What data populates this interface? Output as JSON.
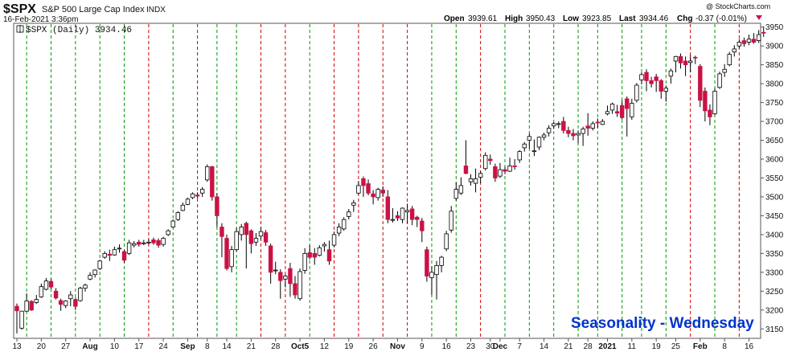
{
  "header": {
    "symbol": "$SPX",
    "name": "S&P 500 Large Cap Index",
    "exchange": "INDX",
    "datetime": "16-Feb-2021 3:36pm",
    "watermark": "@ StockCharts.com",
    "open_label": "Open",
    "open": "3939.61",
    "high_label": "High",
    "high": "3950.43",
    "low_label": "Low",
    "low": "3923.85",
    "last_label": "Last",
    "last": "3934.46",
    "chg_label": "Chg",
    "chg": "-0.37 (-0.01%)"
  },
  "legend": {
    "label": "$SPX (Daily) 3934.46"
  },
  "annotation": "Seasonality - Wednesday",
  "colors": {
    "up": "#ffffff",
    "down": "#cc1144",
    "outline": "#000000",
    "green_line": "#009900",
    "red_line": "#cc0000",
    "annotation": "#0033cc"
  },
  "chart_data": {
    "type": "candlestick",
    "ylim": [
      3125,
      3960
    ],
    "yticks": [
      3150,
      3200,
      3250,
      3300,
      3350,
      3400,
      3450,
      3500,
      3550,
      3600,
      3650,
      3700,
      3750,
      3800,
      3850,
      3900,
      3950
    ],
    "xticks": [
      {
        "label": "13",
        "i": 0,
        "bold": false
      },
      {
        "label": "20",
        "i": 5,
        "bold": false
      },
      {
        "label": "27",
        "i": 10,
        "bold": false
      },
      {
        "label": "Aug",
        "i": 15,
        "bold": true
      },
      {
        "label": "10",
        "i": 20,
        "bold": false
      },
      {
        "label": "17",
        "i": 25,
        "bold": false
      },
      {
        "label": "24",
        "i": 30,
        "bold": false
      },
      {
        "label": "Sep",
        "i": 35,
        "bold": true
      },
      {
        "label": "8",
        "i": 39,
        "bold": false
      },
      {
        "label": "14",
        "i": 43,
        "bold": false
      },
      {
        "label": "21",
        "i": 48,
        "bold": false
      },
      {
        "label": "28",
        "i": 53,
        "bold": false
      },
      {
        "label": "Oct5",
        "i": 58,
        "bold": true
      },
      {
        "label": "12",
        "i": 63,
        "bold": false
      },
      {
        "label": "19",
        "i": 68,
        "bold": false
      },
      {
        "label": "26",
        "i": 73,
        "bold": false
      },
      {
        "label": "Nov",
        "i": 78,
        "bold": true
      },
      {
        "label": "9",
        "i": 83,
        "bold": false
      },
      {
        "label": "16",
        "i": 88,
        "bold": false
      },
      {
        "label": "23",
        "i": 93,
        "bold": false
      },
      {
        "label": "30",
        "i": 97,
        "bold": false
      },
      {
        "label": "Dec",
        "i": 99,
        "bold": true
      },
      {
        "label": "7",
        "i": 103,
        "bold": false
      },
      {
        "label": "14",
        "i": 108,
        "bold": false
      },
      {
        "label": "21",
        "i": 113,
        "bold": false
      },
      {
        "label": "28",
        "i": 117,
        "bold": false
      },
      {
        "label": "2021",
        "i": 121,
        "bold": true
      },
      {
        "label": "11",
        "i": 126,
        "bold": false
      },
      {
        "label": "19",
        "i": 131,
        "bold": false
      },
      {
        "label": "25",
        "i": 135,
        "bold": false
      },
      {
        "label": "Feb",
        "i": 140,
        "bold": true
      },
      {
        "label": "8",
        "i": 145,
        "bold": false
      },
      {
        "label": "16",
        "i": 150,
        "bold": false
      }
    ],
    "wednesday_lines": [
      {
        "i": 2,
        "color": "green"
      },
      {
        "i": 7,
        "color": "green"
      },
      {
        "i": 12,
        "color": "green"
      },
      {
        "i": 17,
        "color": "green"
      },
      {
        "i": 22,
        "color": "green"
      },
      {
        "i": 27,
        "color": "red"
      },
      {
        "i": 32,
        "color": "green"
      },
      {
        "i": 37,
        "color": "red"
      },
      {
        "i": 41,
        "color": "green"
      },
      {
        "i": 45,
        "color": "green"
      },
      {
        "i": 50,
        "color": "red"
      },
      {
        "i": 55,
        "color": "red"
      },
      {
        "i": 60,
        "color": "green"
      },
      {
        "i": 65,
        "color": "red"
      },
      {
        "i": 70,
        "color": "red"
      },
      {
        "i": 75,
        "color": "red"
      },
      {
        "i": 80,
        "color": "red"
      },
      {
        "i": 85,
        "color": "green"
      },
      {
        "i": 90,
        "color": "green"
      },
      {
        "i": 95,
        "color": "red"
      },
      {
        "i": 100,
        "color": "green"
      },
      {
        "i": 105,
        "color": "green"
      },
      {
        "i": 110,
        "color": "green"
      },
      {
        "i": 115,
        "color": "green"
      },
      {
        "i": 119,
        "color": "green"
      },
      {
        "i": 124,
        "color": "green"
      },
      {
        "i": 128,
        "color": "green"
      },
      {
        "i": 133,
        "color": "green"
      },
      {
        "i": 138,
        "color": "red"
      },
      {
        "i": 143,
        "color": "green"
      },
      {
        "i": 148,
        "color": "red"
      }
    ],
    "candles": [
      [
        3210,
        3198,
        3217,
        3138
      ],
      [
        3152,
        3197,
        3198,
        3148
      ],
      [
        3197,
        3224,
        3244,
        3195
      ],
      [
        3223,
        3200,
        3226,
        3198
      ],
      [
        3220,
        3228,
        3240,
        3216
      ],
      [
        3235,
        3262,
        3270,
        3232
      ],
      [
        3255,
        3277,
        3285,
        3252
      ],
      [
        3276,
        3261,
        3283,
        3256
      ],
      [
        3250,
        3232,
        3258,
        3228
      ],
      [
        3225,
        3215,
        3230,
        3198
      ],
      [
        3212,
        3224,
        3226,
        3205
      ],
      [
        3230,
        3240,
        3250,
        3210
      ],
      [
        3228,
        3210,
        3233,
        3200
      ],
      [
        3225,
        3258,
        3262,
        3222
      ],
      [
        3258,
        3266,
        3270,
        3249
      ],
      [
        3282,
        3292,
        3300,
        3279
      ],
      [
        3294,
        3306,
        3308,
        3286
      ],
      [
        3310,
        3330,
        3333,
        3306
      ],
      [
        3340,
        3350,
        3356,
        3336
      ],
      [
        3348,
        3345,
        3360,
        3330
      ],
      [
        3346,
        3360,
        3368,
        3344
      ],
      [
        3364,
        3364,
        3374,
        3352
      ],
      [
        3355,
        3332,
        3360,
        3325
      ],
      [
        3350,
        3378,
        3386,
        3346
      ],
      [
        3372,
        3376,
        3383,
        3366
      ],
      [
        3380,
        3374,
        3386,
        3368
      ],
      [
        3376,
        3378,
        3386,
        3372
      ],
      [
        3380,
        3380,
        3388,
        3374
      ],
      [
        3386,
        3378,
        3392,
        3373
      ],
      [
        3384,
        3372,
        3390,
        3365
      ],
      [
        3374,
        3390,
        3394,
        3368
      ],
      [
        3400,
        3410,
        3414,
        3396
      ],
      [
        3420,
        3436,
        3440,
        3418
      ],
      [
        3440,
        3458,
        3462,
        3436
      ],
      [
        3464,
        3478,
        3485,
        3462
      ],
      [
        3480,
        3494,
        3498,
        3478
      ],
      [
        3498,
        3508,
        3512,
        3494
      ],
      [
        3505,
        3502,
        3512,
        3496
      ],
      [
        3510,
        3520,
        3526,
        3500
      ],
      [
        3545,
        3580,
        3586,
        3540
      ],
      [
        3580,
        3500,
        3582,
        3490
      ],
      [
        3500,
        3450,
        3510,
        3420
      ],
      [
        3420,
        3395,
        3430,
        3340
      ],
      [
        3390,
        3310,
        3400,
        3305
      ],
      [
        3315,
        3360,
        3370,
        3300
      ],
      [
        3360,
        3408,
        3418,
        3355
      ],
      [
        3400,
        3420,
        3428,
        3384
      ],
      [
        3430,
        3400,
        3434,
        3310
      ],
      [
        3410,
        3376,
        3414,
        3350
      ],
      [
        3380,
        3390,
        3404,
        3370
      ],
      [
        3396,
        3408,
        3420,
        3386
      ],
      [
        3405,
        3380,
        3412,
        3370
      ],
      [
        3370,
        3300,
        3376,
        3270
      ],
      [
        3305,
        3306,
        3328,
        3295
      ],
      [
        3300,
        3278,
        3308,
        3230
      ],
      [
        3282,
        3290,
        3294,
        3260
      ],
      [
        3310,
        3270,
        3325,
        3235
      ],
      [
        3270,
        3240,
        3290,
        3230
      ],
      [
        3230,
        3302,
        3310,
        3225
      ],
      [
        3305,
        3350,
        3364,
        3296
      ],
      [
        3352,
        3340,
        3372,
        3334
      ],
      [
        3350,
        3340,
        3364,
        3320
      ],
      [
        3345,
        3365,
        3372,
        3342
      ],
      [
        3370,
        3374,
        3380,
        3355
      ],
      [
        3360,
        3330,
        3384,
        3320
      ],
      [
        3372,
        3400,
        3408,
        3366
      ],
      [
        3404,
        3420,
        3430,
        3396
      ],
      [
        3415,
        3440,
        3446,
        3410
      ],
      [
        3448,
        3460,
        3468,
        3440
      ],
      [
        3478,
        3484,
        3492,
        3460
      ],
      [
        3510,
        3530,
        3542,
        3506
      ],
      [
        3548,
        3530,
        3554,
        3500
      ],
      [
        3535,
        3510,
        3546,
        3504
      ],
      [
        3508,
        3500,
        3518,
        3480
      ],
      [
        3498,
        3520,
        3524,
        3490
      ],
      [
        3518,
        3510,
        3528,
        3500
      ],
      [
        3500,
        3440,
        3518,
        3430
      ],
      [
        3440,
        3440,
        3470,
        3432
      ],
      [
        3450,
        3444,
        3462,
        3436
      ],
      [
        3440,
        3470,
        3472,
        3430
      ],
      [
        3460,
        3464,
        3482,
        3430
      ],
      [
        3468,
        3440,
        3476,
        3425
      ],
      [
        3446,
        3440,
        3450,
        3420
      ],
      [
        3436,
        3410,
        3444,
        3380
      ],
      [
        3360,
        3290,
        3368,
        3275
      ],
      [
        3286,
        3300,
        3316,
        3240
      ],
      [
        3294,
        3318,
        3330,
        3228
      ],
      [
        3318,
        3340,
        3344,
        3300
      ],
      [
        3362,
        3402,
        3410,
        3356
      ],
      [
        3412,
        3462,
        3476,
        3405
      ],
      [
        3496,
        3520,
        3538,
        3490
      ],
      [
        3510,
        3530,
        3552,
        3505
      ],
      [
        3582,
        3562,
        3650,
        3560
      ],
      [
        3540,
        3548,
        3560,
        3530
      ],
      [
        3536,
        3548,
        3575,
        3512
      ],
      [
        3552,
        3562,
        3568,
        3536
      ],
      [
        3575,
        3610,
        3618,
        3570
      ],
      [
        3600,
        3596,
        3612,
        3585
      ],
      [
        3580,
        3550,
        3588,
        3540
      ],
      [
        3555,
        3572,
        3590,
        3550
      ],
      [
        3572,
        3568,
        3580,
        3560
      ],
      [
        3568,
        3582,
        3604,
        3566
      ],
      [
        3582,
        3580,
        3600,
        3572
      ],
      [
        3598,
        3620,
        3624,
        3590
      ],
      [
        3630,
        3640,
        3645,
        3620
      ],
      [
        3650,
        3660,
        3668,
        3628
      ],
      [
        3622,
        3622,
        3652,
        3608
      ],
      [
        3632,
        3658,
        3660,
        3624
      ],
      [
        3658,
        3664,
        3670,
        3650
      ],
      [
        3670,
        3682,
        3690,
        3660
      ],
      [
        3688,
        3694,
        3698,
        3680
      ],
      [
        3694,
        3694,
        3700,
        3682
      ],
      [
        3700,
        3676,
        3712,
        3668
      ],
      [
        3676,
        3668,
        3686,
        3658
      ],
      [
        3668,
        3662,
        3680,
        3650
      ],
      [
        3664,
        3668,
        3676,
        3642
      ],
      [
        3668,
        3680,
        3686,
        3635
      ],
      [
        3688,
        3682,
        3722,
        3662
      ],
      [
        3682,
        3694,
        3700,
        3676
      ],
      [
        3698,
        3696,
        3708,
        3682
      ],
      [
        3692,
        3700,
        3706,
        3690
      ],
      [
        3720,
        3726,
        3742,
        3716
      ],
      [
        3730,
        3746,
        3750,
        3720
      ],
      [
        3726,
        3722,
        3744,
        3712
      ],
      [
        3742,
        3710,
        3756,
        3705
      ],
      [
        3760,
        3734,
        3766,
        3660
      ],
      [
        3712,
        3748,
        3760,
        3704
      ],
      [
        3756,
        3796,
        3802,
        3750
      ],
      [
        3810,
        3824,
        3830,
        3798
      ],
      [
        3830,
        3808,
        3838,
        3780
      ],
      [
        3808,
        3800,
        3818,
        3790
      ],
      [
        3818,
        3808,
        3826,
        3778
      ],
      [
        3808,
        3780,
        3812,
        3760
      ],
      [
        3780,
        3788,
        3795,
        3752
      ],
      [
        3820,
        3834,
        3840,
        3800
      ],
      [
        3860,
        3872,
        3874,
        3830
      ],
      [
        3872,
        3855,
        3880,
        3840
      ],
      [
        3860,
        3850,
        3872,
        3820
      ],
      [
        3856,
        3860,
        3876,
        3830
      ],
      [
        3870,
        3868,
        3874,
        3852
      ],
      [
        3846,
        3756,
        3852,
        3738
      ],
      [
        3780,
        3728,
        3790,
        3700
      ],
      [
        3730,
        3712,
        3745,
        3690
      ],
      [
        3720,
        3780,
        3788,
        3716
      ],
      [
        3790,
        3826,
        3832,
        3786
      ],
      [
        3830,
        3838,
        3852,
        3818
      ],
      [
        3850,
        3878,
        3884,
        3846
      ],
      [
        3884,
        3892,
        3902,
        3872
      ],
      [
        3900,
        3910,
        3918,
        3894
      ],
      [
        3914,
        3906,
        3922,
        3898
      ],
      [
        3910,
        3918,
        3930,
        3902
      ],
      [
        3918,
        3910,
        3934,
        3906
      ],
      [
        3914,
        3930,
        3942,
        3908
      ],
      [
        3936,
        3934,
        3952,
        3924
      ]
    ]
  }
}
